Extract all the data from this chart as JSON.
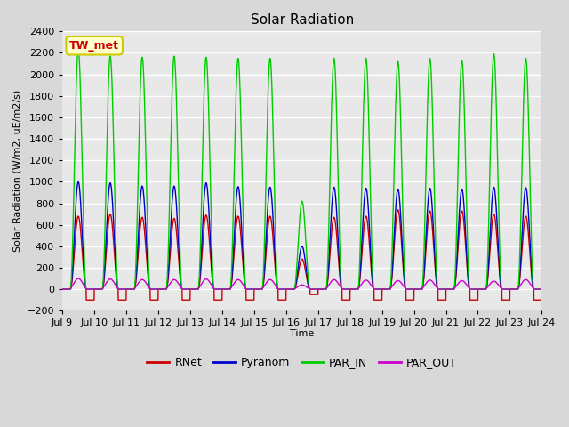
{
  "title": "Solar Radiation",
  "ylabel": "Solar Radiation (W/m2, uE/m2/s)",
  "xlabel": "Time",
  "ylim": [
    -200,
    2400
  ],
  "yticks": [
    -200,
    0,
    200,
    400,
    600,
    800,
    1000,
    1200,
    1400,
    1600,
    1800,
    2000,
    2200,
    2400
  ],
  "xtick_labels": [
    "Jul 9",
    "Jul 10",
    "Jul 11",
    "Jul 12",
    "Jul 13",
    "Jul 14",
    "Jul 15",
    "Jul 16",
    "Jul 17",
    "Jul 18",
    "Jul 19",
    "Jul 20",
    "Jul 21",
    "Jul 22",
    "Jul 23",
    "Jul 24"
  ],
  "num_days": 15,
  "background_color": "#d8d8d8",
  "plot_bg_color": "#e8e8e8",
  "grid_color": "#ffffff",
  "line_colors": {
    "RNet": "#cc0000",
    "Pyranom": "#0000cc",
    "PAR_IN": "#00cc00",
    "PAR_OUT": "#cc00cc"
  },
  "series_names": [
    "RNet",
    "Pyranom",
    "PAR_IN",
    "PAR_OUT"
  ],
  "label_box_text": "TW_met",
  "label_box_facecolor": "#ffffcc",
  "label_box_edgecolor": "#cccc00",
  "label_box_textcolor": "#cc0000",
  "par_in_peaks": [
    2230,
    2170,
    2160,
    2170,
    2160,
    2150,
    2150,
    820,
    2150,
    2150,
    2120,
    2150,
    2130,
    2190,
    2150
  ],
  "pyranom_peaks": [
    1000,
    990,
    960,
    960,
    990,
    955,
    950,
    400,
    950,
    940,
    930,
    940,
    930,
    950,
    945
  ],
  "rnet_peaks": [
    680,
    700,
    670,
    660,
    690,
    680,
    680,
    280,
    670,
    680,
    740,
    730,
    730,
    700,
    680
  ],
  "par_out_peaks": [
    100,
    95,
    90,
    90,
    95,
    90,
    90,
    40,
    90,
    85,
    80,
    85,
    80,
    75,
    90
  ],
  "rnet_night": [
    -100,
    -100,
    -100,
    -100,
    -100,
    -100,
    -100,
    -50,
    -100,
    -100,
    -100,
    -100,
    -100,
    -100,
    -100
  ],
  "day_start": 0.25,
  "day_end": 0.75
}
